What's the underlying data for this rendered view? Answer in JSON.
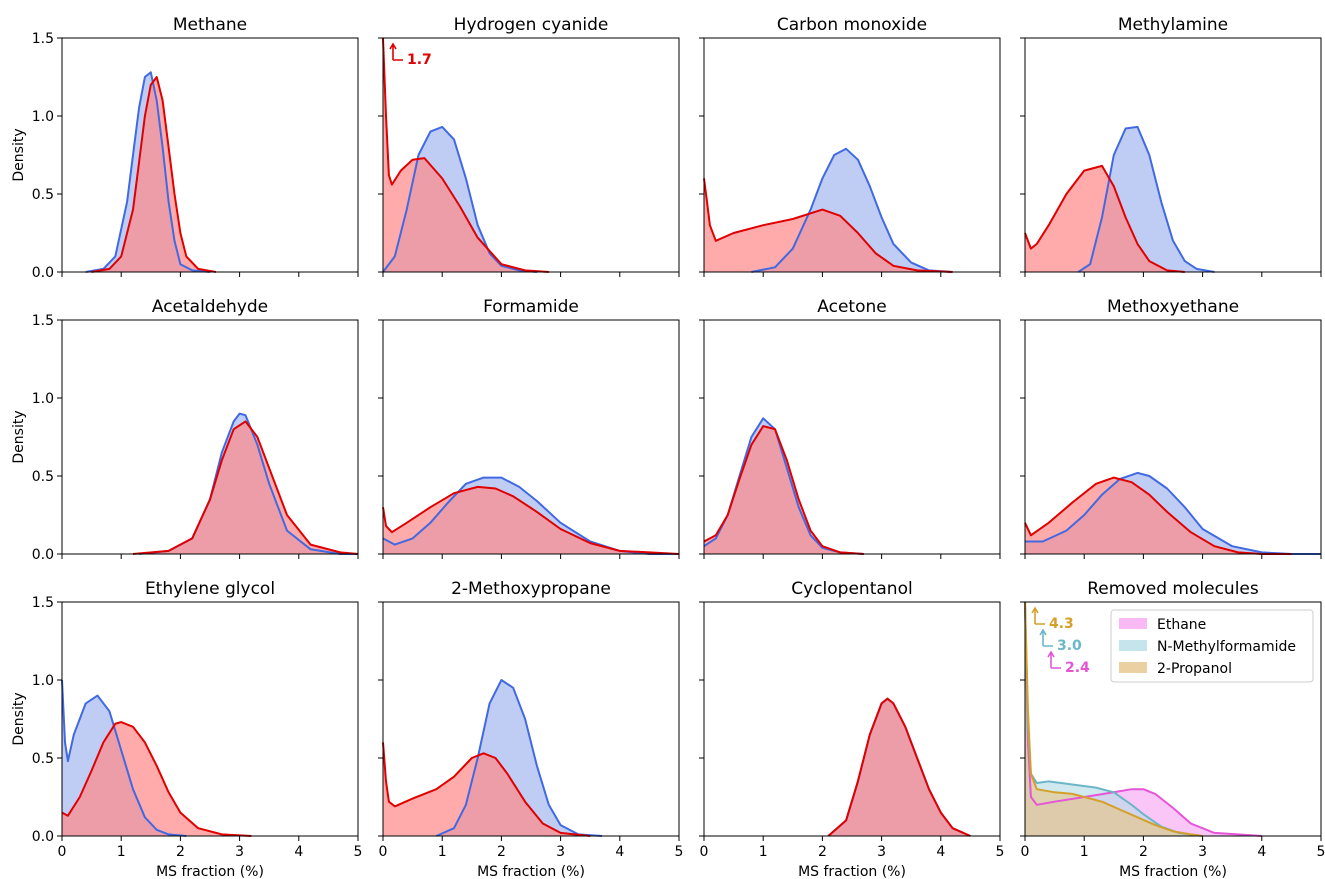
{
  "figure": {
    "ylabel": "Density",
    "xlabel": "MS fraction (%)",
    "colors": {
      "blue_line": "#4169e1",
      "blue_fill": "#a9bcf2",
      "red_line": "#e00000",
      "red_fill": "#ff8a8a",
      "overlap": "#c76e85"
    }
  },
  "chart_data": [
    {
      "type": "area",
      "title": "Methane",
      "xlim": [
        0,
        5
      ],
      "ylim": [
        0,
        1.5
      ],
      "x_ticks": [
        0,
        1,
        2,
        3,
        4,
        5
      ],
      "y_ticks": [
        0.0,
        0.5,
        1.0,
        1.5
      ],
      "series": [
        {
          "color": "#4169e1",
          "x": [
            0.4,
            0.7,
            0.9,
            1.1,
            1.2,
            1.3,
            1.4,
            1.5,
            1.6,
            1.7,
            1.8,
            1.9,
            2.0,
            2.2,
            2.5
          ],
          "y": [
            0,
            0.02,
            0.1,
            0.45,
            0.75,
            1.05,
            1.25,
            1.28,
            1.1,
            0.8,
            0.45,
            0.2,
            0.05,
            0.01,
            0
          ]
        },
        {
          "color": "#e00000",
          "x": [
            0.5,
            0.8,
            1.0,
            1.2,
            1.3,
            1.4,
            1.5,
            1.6,
            1.7,
            1.8,
            1.9,
            2.0,
            2.1,
            2.3,
            2.6
          ],
          "y": [
            0,
            0.02,
            0.1,
            0.4,
            0.7,
            1.0,
            1.2,
            1.25,
            1.1,
            0.8,
            0.5,
            0.25,
            0.1,
            0.02,
            0
          ]
        }
      ]
    },
    {
      "type": "area",
      "title": "Hydrogen cyanide",
      "xlim": [
        0,
        5
      ],
      "ylim": [
        0,
        1.5
      ],
      "x_ticks": [
        0,
        1,
        2,
        3,
        4,
        5
      ],
      "y_ticks": [
        0.0,
        0.5,
        1.0,
        1.5
      ],
      "annotations": [
        {
          "text": "1.7",
          "color": "#e00000"
        }
      ],
      "series": [
        {
          "color": "#4169e1",
          "x": [
            0,
            0.2,
            0.4,
            0.6,
            0.8,
            1.0,
            1.2,
            1.4,
            1.6,
            1.8,
            2.0,
            2.3,
            2.6
          ],
          "y": [
            0,
            0.1,
            0.4,
            0.75,
            0.9,
            0.93,
            0.85,
            0.6,
            0.3,
            0.12,
            0.04,
            0.01,
            0
          ]
        },
        {
          "color": "#e00000",
          "x": [
            0,
            0.05,
            0.1,
            0.15,
            0.3,
            0.5,
            0.7,
            1.0,
            1.3,
            1.6,
            2.0,
            2.4,
            2.8
          ],
          "y": [
            1.5,
            1.0,
            0.62,
            0.56,
            0.65,
            0.72,
            0.73,
            0.6,
            0.42,
            0.22,
            0.05,
            0.01,
            0
          ]
        }
      ]
    },
    {
      "type": "area",
      "title": "Carbon monoxide",
      "xlim": [
        0,
        5
      ],
      "ylim": [
        0,
        1.5
      ],
      "x_ticks": [
        0,
        1,
        2,
        3,
        4,
        5
      ],
      "y_ticks": [
        0.0,
        0.5,
        1.0,
        1.5
      ],
      "series": [
        {
          "color": "#4169e1",
          "x": [
            0.8,
            1.2,
            1.5,
            1.8,
            2.0,
            2.2,
            2.4,
            2.6,
            2.8,
            3.0,
            3.2,
            3.5,
            3.8,
            4.2
          ],
          "y": [
            0,
            0.03,
            0.15,
            0.4,
            0.6,
            0.75,
            0.79,
            0.72,
            0.55,
            0.35,
            0.18,
            0.06,
            0.01,
            0
          ]
        },
        {
          "color": "#e00000",
          "x": [
            0,
            0.05,
            0.1,
            0.2,
            0.5,
            1.0,
            1.5,
            2.0,
            2.3,
            2.6,
            2.9,
            3.2,
            3.6,
            4.2
          ],
          "y": [
            0.6,
            0.45,
            0.3,
            0.2,
            0.25,
            0.3,
            0.34,
            0.4,
            0.36,
            0.25,
            0.12,
            0.04,
            0.01,
            0
          ]
        }
      ]
    },
    {
      "type": "area",
      "title": "Methylamine",
      "xlim": [
        0,
        5
      ],
      "ylim": [
        0,
        1.5
      ],
      "x_ticks": [
        0,
        1,
        2,
        3,
        4,
        5
      ],
      "y_ticks": [
        0.0,
        0.5,
        1.0,
        1.5
      ],
      "series": [
        {
          "color": "#4169e1",
          "x": [
            0.9,
            1.1,
            1.3,
            1.5,
            1.7,
            1.9,
            2.1,
            2.3,
            2.5,
            2.7,
            2.9,
            3.2
          ],
          "y": [
            0,
            0.05,
            0.35,
            0.75,
            0.92,
            0.93,
            0.75,
            0.45,
            0.2,
            0.07,
            0.02,
            0
          ]
        },
        {
          "color": "#e00000",
          "x": [
            0,
            0.1,
            0.2,
            0.4,
            0.7,
            1.0,
            1.3,
            1.5,
            1.7,
            1.9,
            2.1,
            2.4,
            2.7
          ],
          "y": [
            0.25,
            0.15,
            0.18,
            0.3,
            0.5,
            0.65,
            0.68,
            0.55,
            0.35,
            0.18,
            0.07,
            0.01,
            0
          ]
        }
      ]
    },
    {
      "type": "area",
      "title": "Acetaldehyde",
      "xlim": [
        0,
        5
      ],
      "ylim": [
        0,
        1.5
      ],
      "x_ticks": [
        0,
        1,
        2,
        3,
        4,
        5
      ],
      "y_ticks": [
        0.0,
        0.5,
        1.0,
        1.5
      ],
      "series": [
        {
          "color": "#4169e1",
          "x": [
            1.3,
            1.8,
            2.2,
            2.5,
            2.7,
            2.9,
            3.0,
            3.1,
            3.3,
            3.5,
            3.8,
            4.2,
            4.7,
            5.0
          ],
          "y": [
            0,
            0.02,
            0.1,
            0.35,
            0.65,
            0.85,
            0.9,
            0.89,
            0.7,
            0.45,
            0.15,
            0.03,
            0,
            0
          ]
        },
        {
          "color": "#e00000",
          "x": [
            1.2,
            1.8,
            2.2,
            2.5,
            2.7,
            2.9,
            3.1,
            3.3,
            3.5,
            3.8,
            4.2,
            4.7,
            5.0
          ],
          "y": [
            0,
            0.02,
            0.1,
            0.35,
            0.6,
            0.8,
            0.85,
            0.75,
            0.55,
            0.25,
            0.06,
            0.01,
            0
          ]
        }
      ]
    },
    {
      "type": "area",
      "title": "Formamide",
      "xlim": [
        0,
        5
      ],
      "ylim": [
        0,
        1.5
      ],
      "x_ticks": [
        0,
        1,
        2,
        3,
        4,
        5
      ],
      "y_ticks": [
        0.0,
        0.5,
        1.0,
        1.5
      ],
      "series": [
        {
          "color": "#4169e1",
          "x": [
            0,
            0.2,
            0.5,
            0.8,
            1.1,
            1.4,
            1.7,
            2.0,
            2.3,
            2.6,
            3.0,
            3.5,
            4.0,
            4.5,
            5.0
          ],
          "y": [
            0.1,
            0.06,
            0.1,
            0.2,
            0.33,
            0.45,
            0.49,
            0.49,
            0.43,
            0.34,
            0.2,
            0.08,
            0.02,
            0,
            0
          ]
        },
        {
          "color": "#e00000",
          "x": [
            0,
            0.05,
            0.15,
            0.4,
            0.8,
            1.2,
            1.6,
            1.9,
            2.2,
            2.6,
            3.0,
            3.5,
            4.0,
            4.5,
            5.0
          ],
          "y": [
            0.3,
            0.18,
            0.14,
            0.2,
            0.3,
            0.39,
            0.43,
            0.42,
            0.37,
            0.27,
            0.16,
            0.07,
            0.02,
            0.01,
            0
          ]
        }
      ]
    },
    {
      "type": "area",
      "title": "Acetone",
      "xlim": [
        0,
        5
      ],
      "ylim": [
        0,
        1.5
      ],
      "x_ticks": [
        0,
        1,
        2,
        3,
        4,
        5
      ],
      "y_ticks": [
        0.0,
        0.5,
        1.0,
        1.5
      ],
      "series": [
        {
          "color": "#4169e1",
          "x": [
            0,
            0.2,
            0.4,
            0.6,
            0.8,
            1.0,
            1.2,
            1.4,
            1.6,
            1.8,
            2.0,
            2.3,
            2.7
          ],
          "y": [
            0.05,
            0.1,
            0.25,
            0.5,
            0.75,
            0.87,
            0.8,
            0.55,
            0.3,
            0.12,
            0.04,
            0.01,
            0
          ]
        },
        {
          "color": "#e00000",
          "x": [
            0,
            0.2,
            0.4,
            0.6,
            0.8,
            1.0,
            1.2,
            1.4,
            1.6,
            1.8,
            2.0,
            2.3,
            2.7
          ],
          "y": [
            0.08,
            0.12,
            0.25,
            0.48,
            0.7,
            0.82,
            0.8,
            0.6,
            0.35,
            0.15,
            0.05,
            0.01,
            0
          ]
        }
      ]
    },
    {
      "type": "area",
      "title": "Methoxyethane",
      "xlim": [
        0,
        5
      ],
      "ylim": [
        0,
        1.5
      ],
      "x_ticks": [
        0,
        1,
        2,
        3,
        4,
        5
      ],
      "y_ticks": [
        0.0,
        0.5,
        1.0,
        1.5
      ],
      "series": [
        {
          "color": "#4169e1",
          "x": [
            0,
            0.3,
            0.7,
            1.0,
            1.3,
            1.6,
            1.9,
            2.1,
            2.4,
            2.7,
            3.0,
            3.5,
            4.0,
            4.5,
            5.0
          ],
          "y": [
            0.08,
            0.08,
            0.15,
            0.25,
            0.38,
            0.48,
            0.52,
            0.5,
            0.42,
            0.3,
            0.16,
            0.05,
            0.01,
            0,
            0
          ]
        },
        {
          "color": "#e00000",
          "x": [
            0,
            0.1,
            0.4,
            0.8,
            1.2,
            1.5,
            1.8,
            2.1,
            2.4,
            2.8,
            3.2,
            3.6,
            4.0,
            4.5
          ],
          "y": [
            0.2,
            0.12,
            0.2,
            0.33,
            0.45,
            0.49,
            0.46,
            0.38,
            0.27,
            0.14,
            0.05,
            0.01,
            0,
            0
          ]
        }
      ]
    },
    {
      "type": "area",
      "title": "Ethylene glycol",
      "xlim": [
        0,
        5
      ],
      "ylim": [
        0,
        1.5
      ],
      "x_ticks": [
        0,
        1,
        2,
        3,
        4,
        5
      ],
      "y_ticks": [
        0.0,
        0.5,
        1.0,
        1.5
      ],
      "series": [
        {
          "color": "#4169e1",
          "x": [
            0,
            0.05,
            0.1,
            0.2,
            0.4,
            0.6,
            0.8,
            1.0,
            1.2,
            1.4,
            1.6,
            1.8,
            2.1
          ],
          "y": [
            1.0,
            0.6,
            0.48,
            0.65,
            0.85,
            0.9,
            0.8,
            0.55,
            0.3,
            0.12,
            0.04,
            0.01,
            0
          ]
        },
        {
          "color": "#e00000",
          "x": [
            0,
            0.1,
            0.3,
            0.5,
            0.7,
            0.9,
            1.0,
            1.2,
            1.4,
            1.6,
            1.8,
            2.0,
            2.3,
            2.7,
            3.2
          ],
          "y": [
            0.15,
            0.13,
            0.25,
            0.42,
            0.6,
            0.72,
            0.73,
            0.7,
            0.6,
            0.45,
            0.28,
            0.15,
            0.05,
            0.01,
            0
          ]
        }
      ]
    },
    {
      "type": "area",
      "title": "2-Methoxypropane",
      "xlim": [
        0,
        5
      ],
      "ylim": [
        0,
        1.5
      ],
      "x_ticks": [
        0,
        1,
        2,
        3,
        4,
        5
      ],
      "y_ticks": [
        0.0,
        0.5,
        1.0,
        1.5
      ],
      "series": [
        {
          "color": "#4169e1",
          "x": [
            0.9,
            1.2,
            1.4,
            1.6,
            1.8,
            2.0,
            2.2,
            2.4,
            2.6,
            2.8,
            3.0,
            3.3,
            3.7
          ],
          "y": [
            0,
            0.05,
            0.2,
            0.5,
            0.85,
            1.0,
            0.95,
            0.75,
            0.45,
            0.2,
            0.07,
            0.01,
            0
          ]
        },
        {
          "color": "#e00000",
          "x": [
            0,
            0.05,
            0.1,
            0.2,
            0.5,
            0.9,
            1.2,
            1.5,
            1.7,
            1.9,
            2.1,
            2.4,
            2.7,
            3.0,
            3.5
          ],
          "y": [
            0.6,
            0.35,
            0.22,
            0.19,
            0.24,
            0.3,
            0.38,
            0.5,
            0.53,
            0.5,
            0.4,
            0.22,
            0.08,
            0.02,
            0
          ]
        }
      ]
    },
    {
      "type": "area",
      "title": "Cyclopentanol",
      "xlim": [
        0,
        5
      ],
      "ylim": [
        0,
        1.5
      ],
      "x_ticks": [
        0,
        1,
        2,
        3,
        4,
        5
      ],
      "y_ticks": [
        0.0,
        0.5,
        1.0,
        1.5
      ],
      "series": [
        {
          "color": "#4169e1",
          "x": [
            2.1,
            2.4,
            2.6,
            2.8,
            3.0,
            3.1,
            3.2,
            3.4,
            3.6,
            3.8,
            4.0,
            4.2,
            4.5
          ],
          "y": [
            0,
            0.1,
            0.35,
            0.65,
            0.85,
            0.88,
            0.85,
            0.7,
            0.5,
            0.3,
            0.15,
            0.05,
            0
          ]
        },
        {
          "color": "#e00000",
          "x": [
            2.1,
            2.4,
            2.6,
            2.8,
            3.0,
            3.1,
            3.2,
            3.4,
            3.6,
            3.8,
            4.0,
            4.2,
            4.5
          ],
          "y": [
            0,
            0.1,
            0.35,
            0.65,
            0.85,
            0.88,
            0.85,
            0.7,
            0.5,
            0.3,
            0.15,
            0.05,
            0
          ]
        }
      ]
    },
    {
      "type": "area",
      "title": "Removed molecules",
      "xlim": [
        0,
        5
      ],
      "ylim": [
        0,
        1.5
      ],
      "x_ticks": [
        0,
        1,
        2,
        3,
        4,
        5
      ],
      "y_ticks": [
        0.0,
        0.5,
        1.0,
        1.5
      ],
      "legend_position": "top-right",
      "annotations": [
        {
          "text": "4.3",
          "color": "#d4a02a"
        },
        {
          "text": "3.0",
          "color": "#6bb6c8"
        },
        {
          "text": "2.4",
          "color": "#e455d8"
        }
      ],
      "series": [
        {
          "name": "Ethane",
          "color": "#e455d8",
          "fill": "#f7a8f2",
          "x": [
            0,
            0.05,
            0.1,
            0.2,
            0.5,
            1.0,
            1.5,
            1.8,
            2.0,
            2.2,
            2.5,
            2.8,
            3.2,
            3.6,
            4.0
          ],
          "y": [
            1.5,
            0.6,
            0.25,
            0.2,
            0.22,
            0.25,
            0.28,
            0.3,
            0.3,
            0.27,
            0.18,
            0.08,
            0.02,
            0.01,
            0
          ]
        },
        {
          "name": "N-Methylformamide",
          "color": "#6bb6c8",
          "fill": "#b7dde6",
          "x": [
            0,
            0.05,
            0.1,
            0.2,
            0.4,
            0.8,
            1.2,
            1.5,
            1.8,
            2.0,
            2.3,
            2.6,
            3.0
          ],
          "y": [
            1.5,
            0.7,
            0.4,
            0.34,
            0.35,
            0.33,
            0.31,
            0.28,
            0.2,
            0.14,
            0.06,
            0.02,
            0
          ]
        },
        {
          "name": "2-Propanol",
          "color": "#d4a02a",
          "fill": "#e6c68b",
          "x": [
            0,
            0.05,
            0.1,
            0.2,
            0.5,
            0.8,
            1.0,
            1.3,
            1.6,
            1.9,
            2.2,
            2.5,
            2.8,
            3.0
          ],
          "y": [
            1.5,
            0.8,
            0.4,
            0.3,
            0.28,
            0.27,
            0.25,
            0.22,
            0.17,
            0.12,
            0.07,
            0.03,
            0.01,
            0
          ]
        }
      ]
    }
  ]
}
